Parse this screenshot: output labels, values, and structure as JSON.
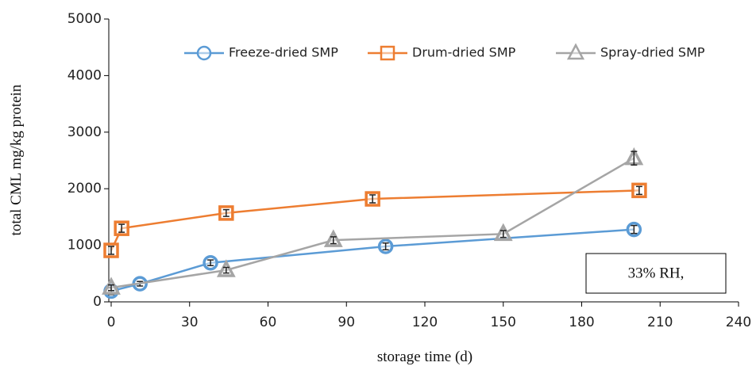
{
  "chart_data": {
    "type": "line",
    "xlabel": "storage time (d)",
    "ylabel": "total CML mg/kg protein",
    "annotation": "33% RH,",
    "xlim": [
      0,
      240
    ],
    "xticks": [
      0,
      30,
      60,
      90,
      120,
      150,
      180,
      210,
      240
    ],
    "ylim": [
      0,
      5000
    ],
    "yticks": [
      0,
      1000,
      2000,
      3000,
      4000,
      5000
    ],
    "series": [
      {
        "name": "Freeze-dried SMP",
        "color": "#5b9bd5",
        "marker": "circle",
        "x": [
          0,
          11,
          38,
          105,
          200
        ],
        "values": [
          190,
          320,
          690,
          980,
          1280
        ],
        "errors": [
          60,
          40,
          50,
          60,
          70
        ]
      },
      {
        "name": "Drum-dried SMP",
        "color": "#ed7d31",
        "marker": "square",
        "x": [
          0,
          4,
          44,
          100,
          202
        ],
        "values": [
          910,
          1300,
          1570,
          1820,
          1970
        ],
        "errors": [
          70,
          70,
          60,
          70,
          70
        ]
      },
      {
        "name": "Spray-dried SMP",
        "color": "#a5a5a5",
        "marker": "triangle",
        "x": [
          0,
          44,
          85,
          150,
          200
        ],
        "values": [
          250,
          560,
          1090,
          1200,
          2540
        ],
        "errors": [
          50,
          50,
          60,
          60,
          120
        ]
      }
    ]
  }
}
